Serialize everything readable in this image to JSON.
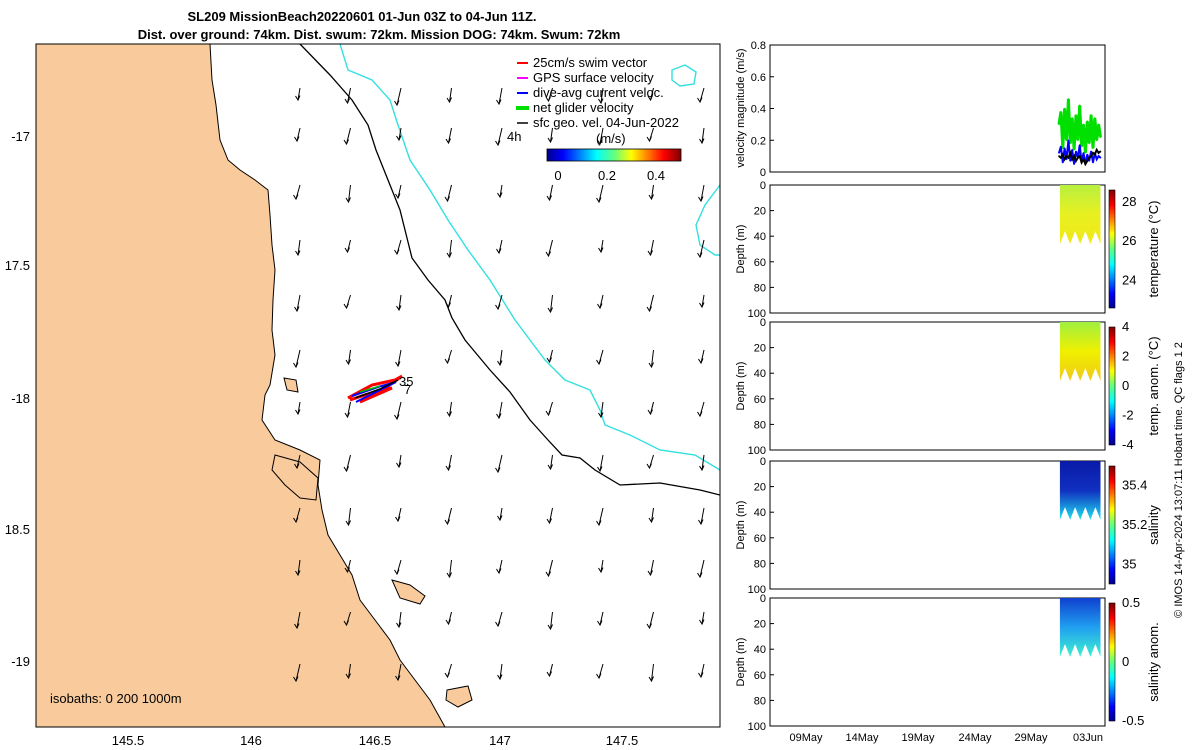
{
  "header": {
    "title_line1": "SL209 MissionBeach20220601 01-Jun 03Z to 04-Jun 11Z.",
    "title_line2": "Dist. over ground: 74km. Dist. swum: 72km. Mission DOG: 74km. Swum: 72km"
  },
  "colors": {
    "land": "#f9cb9c",
    "isobath_200": "#000000",
    "isobath_1000": "#33e0e0",
    "swim_vector": "#ff0000",
    "gps_surface": "#ff00ff",
    "dive_avg": "#0000ff",
    "net_glider": "#00e000",
    "sfc_geo": "#000000"
  },
  "legend": {
    "items": [
      {
        "label": "25cm/s swim vector",
        "color": "#ff0000"
      },
      {
        "label": "GPS surface velocity",
        "color": "#ff00ff"
      },
      {
        "label": "dive-avg current veloc.",
        "color": "#0000ff"
      },
      {
        "label": "net glider velocity",
        "color": "#00e000"
      },
      {
        "label": "sfc geo. vel. 04-Jun-2022",
        "color": "#000000"
      }
    ],
    "time_label": "4h",
    "colorbar_title": "(m/s)",
    "colorbar_ticks": [
      "0",
      "0.2",
      "0.4"
    ],
    "colorbar_range": [
      0,
      0.5
    ]
  },
  "map": {
    "lon_ticks": [
      "145.5",
      "146",
      "146.5",
      "147",
      "147.5"
    ],
    "lat_ticks": [
      "-17",
      "17.5",
      "-18",
      "18.5",
      "-19"
    ],
    "isobath_label": "isobaths: 0   200  1000m",
    "track_labels": [
      "35",
      "7"
    ]
  },
  "footer_note": "© IMOS 14-Apr-2024 13:07:11 Hobart time. QC flags 1  2",
  "chart_data": [
    {
      "type": "line",
      "title": "",
      "xlabel": "",
      "ylabel": "velocity magnitude (m/s)",
      "ylim": [
        0,
        0.8
      ],
      "y_ticks": [
        "0",
        "0.2",
        "0.4",
        "0.6",
        "0.8"
      ],
      "x_ticks": [
        "09May",
        "14May",
        "19May",
        "24May",
        "29May",
        "03Jun"
      ],
      "series": [
        {
          "name": "net glider velocity",
          "color": "#00e000",
          "x_days": [
            30.2,
            30.4,
            30.6,
            30.8,
            31.0,
            31.2,
            31.4,
            31.6,
            31.8,
            32.0,
            32.2,
            32.4,
            32.6,
            32.8,
            33.0,
            33.2,
            33.4,
            33.6,
            33.8,
            34.0,
            34.2,
            34.4,
            34.6
          ],
          "values": [
            0.3,
            0.38,
            0.15,
            0.4,
            0.2,
            0.46,
            0.18,
            0.34,
            0.14,
            0.36,
            0.2,
            0.42,
            0.16,
            0.3,
            0.12,
            0.32,
            0.18,
            0.36,
            0.15,
            0.34,
            0.2,
            0.3,
            0.22
          ]
        },
        {
          "name": "dive-avg current veloc.",
          "color": "#0000ff",
          "x_days": [
            30.2,
            30.4,
            30.6,
            30.8,
            31.0,
            31.2,
            31.4,
            31.6,
            31.8,
            32.0,
            32.2,
            32.4,
            32.6,
            32.8,
            33.0,
            33.2,
            33.4,
            33.6,
            33.8,
            34.0,
            34.2,
            34.4,
            34.6
          ],
          "values": [
            0.12,
            0.16,
            0.06,
            0.15,
            0.08,
            0.2,
            0.07,
            0.14,
            0.05,
            0.13,
            0.09,
            0.17,
            0.06,
            0.12,
            0.05,
            0.11,
            0.07,
            0.13,
            0.06,
            0.12,
            0.08,
            0.1,
            0.09
          ]
        },
        {
          "name": "sfc geo. vel.",
          "color": "#000000",
          "x_days": [
            30.2,
            30.4,
            30.6,
            30.8,
            31.0,
            31.2,
            31.4,
            31.6,
            31.8,
            32.0,
            32.2,
            32.4,
            32.6,
            32.8,
            33.0,
            33.2,
            33.4,
            33.6,
            33.8,
            34.0,
            34.2,
            34.4,
            34.6
          ],
          "values": [
            0.1,
            0.09,
            0.11,
            0.08,
            0.1,
            0.09,
            0.12,
            0.08,
            0.1,
            0.07,
            0.09,
            0.1,
            0.06,
            0.08,
            0.05,
            0.07,
            0.09,
            0.1,
            0.12,
            0.11,
            0.14,
            0.12,
            0.13
          ]
        }
      ]
    },
    {
      "type": "heatmap",
      "ylabel": "Depth (m)",
      "ylim": [
        100,
        0
      ],
      "y_ticks": [
        "0",
        "20",
        "40",
        "60",
        "80",
        "100"
      ],
      "colorbar_label": "temperature (°C)",
      "colorbar_ticks": [
        "28",
        "26",
        "24"
      ],
      "colorbar_range": [
        22.6,
        28.6
      ]
    },
    {
      "type": "heatmap",
      "ylabel": "Depth (m)",
      "ylim": [
        100,
        0
      ],
      "y_ticks": [
        "0",
        "20",
        "40",
        "60",
        "80",
        "100"
      ],
      "colorbar_label": "temp. anom. (°C)",
      "colorbar_ticks": [
        "4",
        "2",
        "0",
        "-2",
        "-4"
      ],
      "colorbar_range": [
        -4,
        4
      ]
    },
    {
      "type": "heatmap",
      "ylabel": "Depth (m)",
      "ylim": [
        100,
        0
      ],
      "y_ticks": [
        "0",
        "20",
        "40",
        "60",
        "80",
        "100"
      ],
      "colorbar_label": "salinity",
      "colorbar_ticks": [
        "35.4",
        "35.2",
        "35"
      ],
      "colorbar_range": [
        34.9,
        35.5
      ]
    },
    {
      "type": "heatmap",
      "ylabel": "Depth (m)",
      "ylim": [
        100,
        0
      ],
      "y_ticks": [
        "0",
        "20",
        "40",
        "60",
        "80",
        "100"
      ],
      "colorbar_label": "salinity anom.",
      "colorbar_ticks": [
        "0.5",
        "0",
        "-0.5"
      ],
      "colorbar_range": [
        -0.5,
        0.5
      ]
    }
  ]
}
